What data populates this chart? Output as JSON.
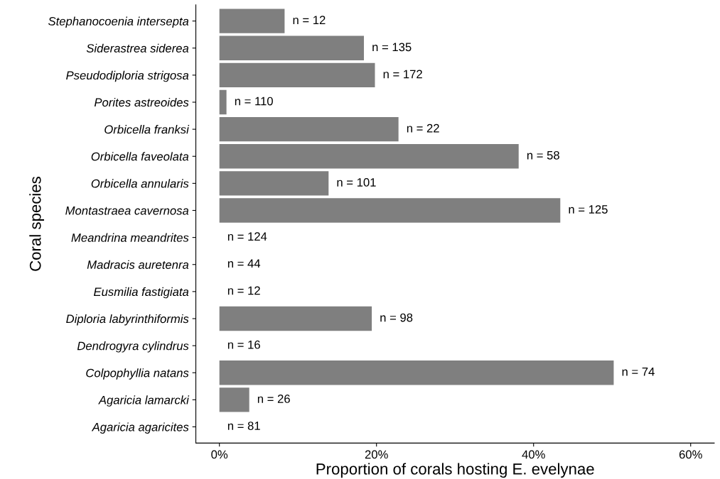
{
  "chart_data": {
    "type": "bar",
    "orientation": "horizontal",
    "xlabel": "Proportion of corals hosting E. evelynae",
    "ylabel": "Coral species",
    "categories": [
      "Stephanocoenia intersepta",
      "Siderastrea siderea",
      "Pseudodiploria strigosa",
      "Porites astreoides",
      "Orbicella franksi",
      "Orbicella faveolata",
      "Orbicella annularis",
      "Montastraea cavernosa",
      "Meandrina meandrites",
      "Madracis auretenra",
      "Eusmilia fastigiata",
      "Diploria labyrinthiformis",
      "Dendrogyra cylindrus",
      "Colpophyllia natans",
      "Agaricia lamarcki",
      "Agaricia agaricites"
    ],
    "values": [
      8.3,
      18.4,
      19.8,
      0.9,
      22.8,
      38.1,
      13.9,
      43.4,
      0,
      0,
      0,
      19.4,
      0,
      50.2,
      3.8,
      0
    ],
    "annotations": [
      {
        "text": "n = 12",
        "x": 8.3,
        "y": "Stephanocoenia intersepta"
      },
      {
        "text": "n = 135",
        "x": 18.4,
        "y": "Siderastrea siderea"
      },
      {
        "text": "n = 172",
        "x": 19.8,
        "y": "Pseudodiploria strigosa"
      },
      {
        "text": "n = 110",
        "x": 0.9,
        "y": "Porites astreoides"
      },
      {
        "text": "n = 22",
        "x": 22.8,
        "y": "Orbicella franksi"
      },
      {
        "text": "n = 58",
        "x": 38.1,
        "y": "Orbicella faveolata"
      },
      {
        "text": "n = 101",
        "x": 13.9,
        "y": "Orbicella annularis"
      },
      {
        "text": "n = 125",
        "x": 43.4,
        "y": "Montastraea cavernosa"
      },
      {
        "text": "n = 124",
        "x": 0,
        "y": "Meandrina meandrites"
      },
      {
        "text": "n = 44",
        "x": 0,
        "y": "Madracis auretenra"
      },
      {
        "text": "n = 12",
        "x": 0,
        "y": "Eusmilia fastigiata"
      },
      {
        "text": "n = 98",
        "x": 19.4,
        "y": "Diploria labyrinthiformis"
      },
      {
        "text": "n = 16",
        "x": 0,
        "y": "Dendrogyra cylindrus"
      },
      {
        "text": "n = 74",
        "x": 50.2,
        "y": "Colpophyllia natans"
      },
      {
        "text": "n = 26",
        "x": 3.8,
        "y": "Agaricia lamarcki"
      },
      {
        "text": "n = 81",
        "x": 0,
        "y": "Agaricia agaricites"
      }
    ],
    "color": "#7f7f7f",
    "xlim": [
      -3,
      63
    ],
    "xticks": [
      {
        "value": 0,
        "label": "0%"
      },
      {
        "value": 20,
        "label": "20%"
      },
      {
        "value": 40,
        "label": "40%"
      },
      {
        "value": 60,
        "label": "60%"
      }
    ],
    "grid": false,
    "legend": false
  }
}
